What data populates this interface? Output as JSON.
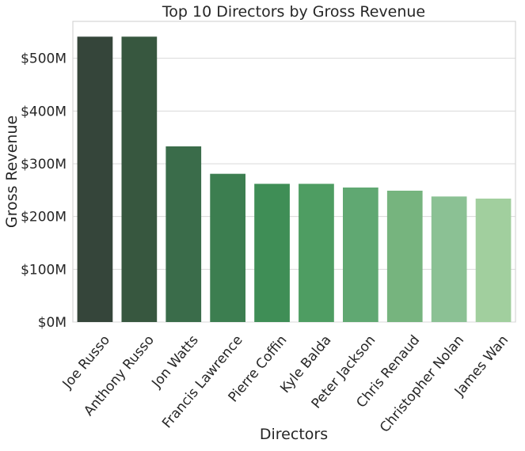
{
  "chart_data": {
    "type": "bar",
    "title": "Top 10 Directors by Gross Revenue",
    "xlabel": "Directors",
    "ylabel": "Gross Revenue",
    "categories": [
      "Joe Russo",
      "Anthony Russo",
      "Jon Watts",
      "Francis Lawrence",
      "Pierre Coffin",
      "Kyle Balda",
      "Peter Jackson",
      "Chris Renaud",
      "Christopher Nolan",
      "James Wan"
    ],
    "values": [
      541,
      541,
      333,
      281,
      262,
      262,
      255,
      249,
      238,
      234
    ],
    "value_unit": "millions USD",
    "ylim": [
      0,
      570
    ],
    "yticks": [
      0,
      100,
      200,
      300,
      400,
      500
    ],
    "ytick_labels": [
      "$0M",
      "$100M",
      "$200M",
      "$300M",
      "$400M",
      "$500M"
    ],
    "grid": true,
    "bar_colors": [
      "#35453a",
      "#37573f",
      "#3a6c4a",
      "#3c7e50",
      "#3f8e56",
      "#4e9d62",
      "#60a872",
      "#76b47e",
      "#8bc194",
      "#a1cf9e"
    ]
  }
}
